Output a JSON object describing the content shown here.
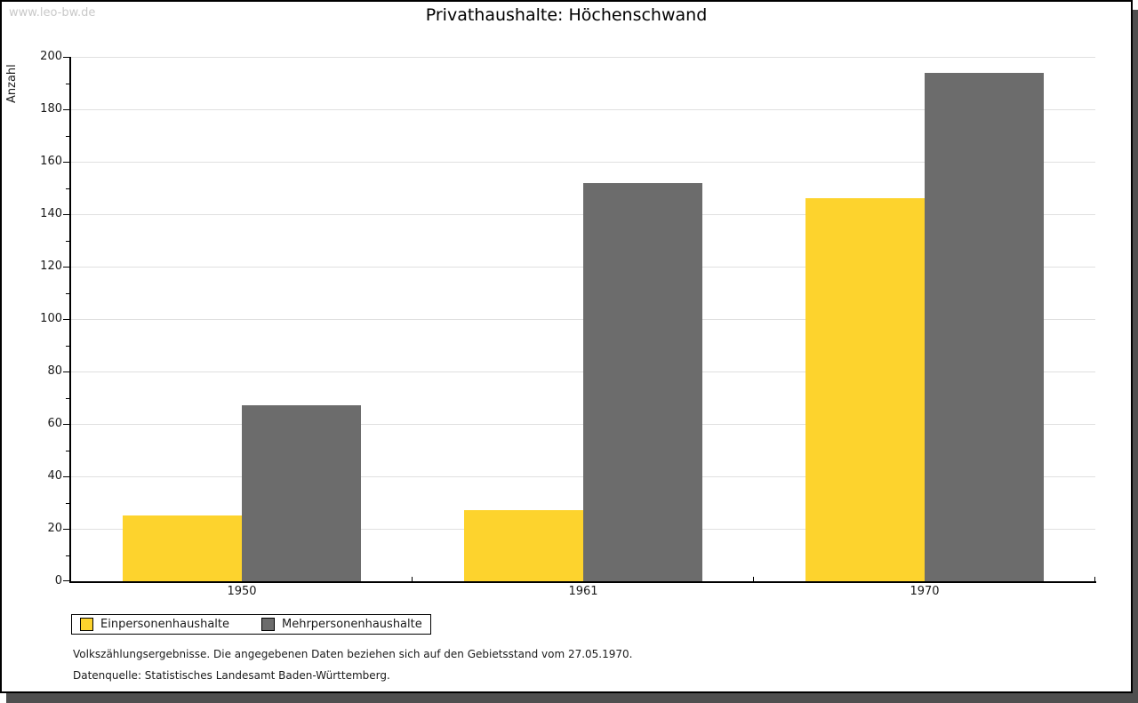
{
  "watermark": "www.leo-bw.de",
  "chart_data": {
    "type": "bar",
    "title": "Privathaushalte: Höchenschwand",
    "ylabel": "Anzahl",
    "xlabel": "",
    "categories": [
      "1950",
      "1961",
      "1970"
    ],
    "series": [
      {
        "name": "Einpersonenhaushalte",
        "color": "#FDD32D",
        "values": [
          25,
          27,
          146
        ]
      },
      {
        "name": "Mehrpersonenhaushalte",
        "color": "#6C6C6C",
        "values": [
          67,
          152,
          194
        ]
      }
    ],
    "ylim": [
      0,
      200
    ],
    "ytick_step": 20,
    "minor_tick_step": 10,
    "grid": true,
    "legend_position": "bottom-left"
  },
  "colors": {
    "series1": "#FDD32D",
    "series2": "#6C6C6C",
    "gridline": "#E0E0E0",
    "watermark": "#C9C9C9",
    "frame_shadow": "#4F4F4F",
    "axis": "#000000"
  },
  "footnotes": [
    "Volkszählungsergebnisse. Die angegebenen Daten beziehen sich auf den Gebietsstand vom 27.05.1970.",
    "Datenquelle: Statistisches Landesamt Baden-Württemberg."
  ]
}
